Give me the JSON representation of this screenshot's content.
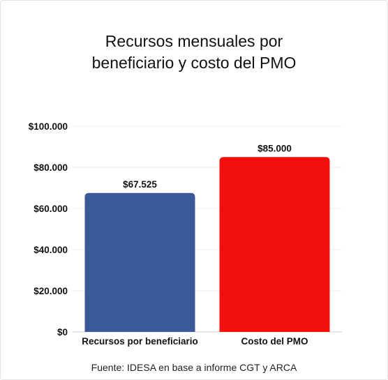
{
  "chart_data": {
    "type": "bar",
    "title_lines": [
      "Recursos mensuales por",
      "beneficiario y costo del PMO"
    ],
    "categories": [
      "Recursos por beneficiario",
      "Costo del PMO"
    ],
    "values": [
      67525,
      85000
    ],
    "value_labels": [
      "$67.525",
      "$85.000"
    ],
    "colors": [
      "#3b5998",
      "#f30f0b"
    ],
    "ylim": [
      0,
      100000
    ],
    "yticks": [
      0,
      20000,
      40000,
      60000,
      80000,
      100000
    ],
    "ytick_labels": [
      "$0",
      "$20.000",
      "$40.000",
      "$60.000",
      "$80.000",
      "$100.000"
    ],
    "grid": true,
    "source": "Fuente: IDESA en base a informe CGT y ARCA"
  }
}
